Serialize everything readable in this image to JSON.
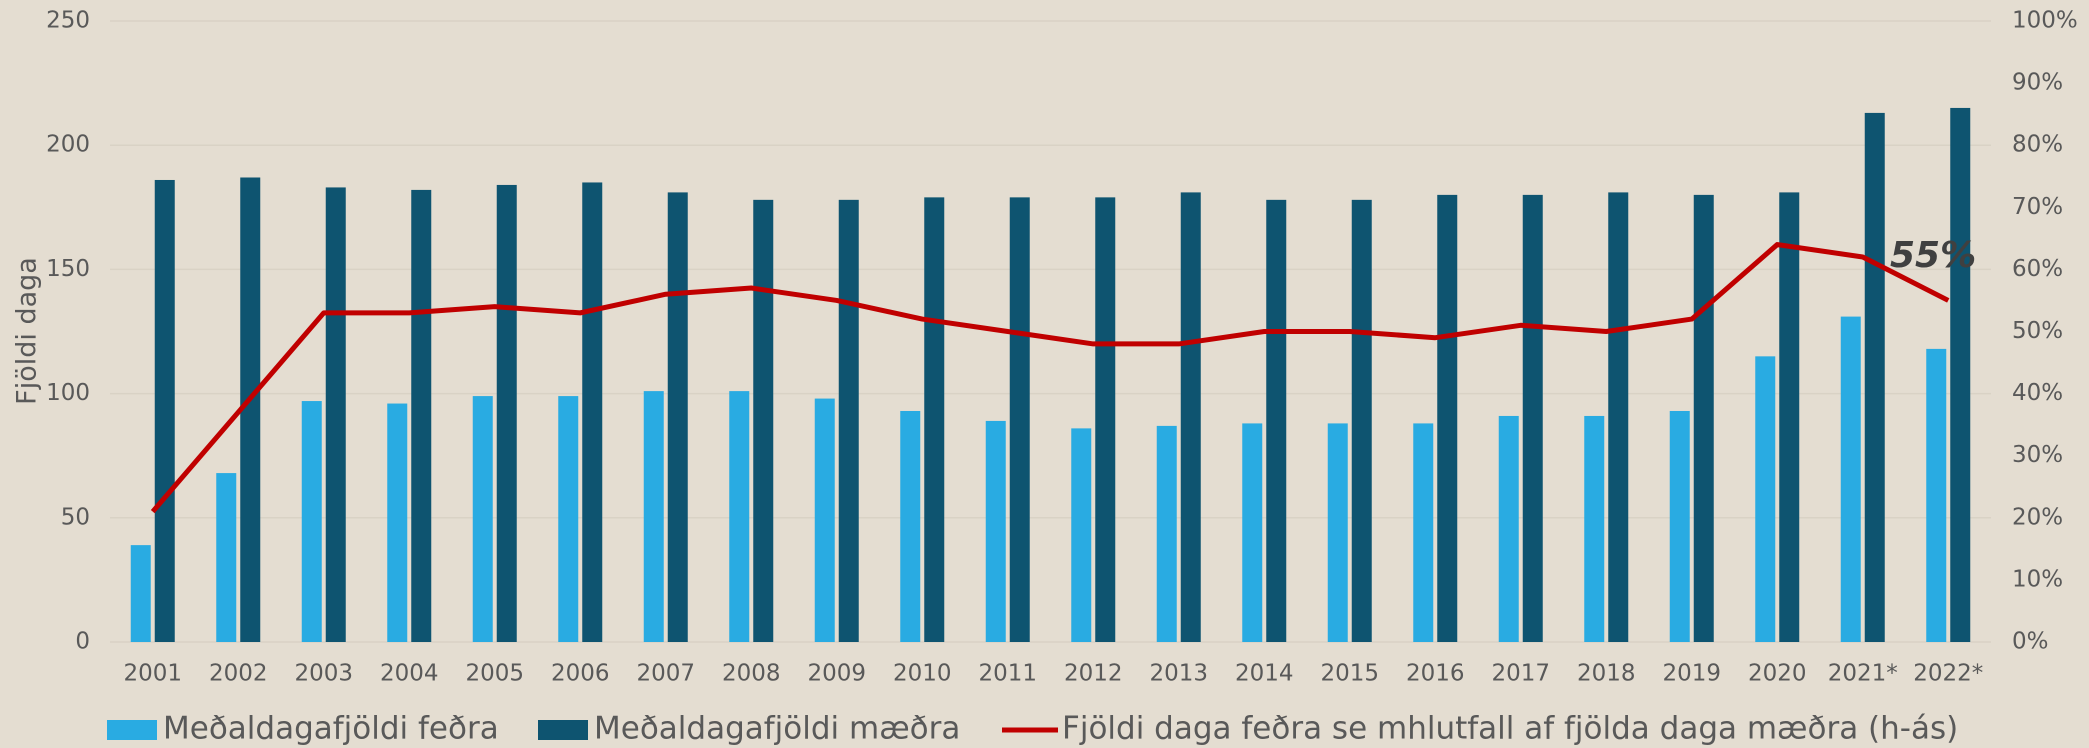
{
  "chart_data": {
    "type": "bar",
    "y_label": "Fjöldi daga",
    "categories": [
      "2001",
      "2002",
      "2003",
      "2004",
      "2005",
      "2006",
      "2007",
      "2008",
      "2009",
      "2010",
      "2011",
      "2012",
      "2013",
      "2014",
      "2015",
      "2016",
      "2017",
      "2018",
      "2019",
      "2020",
      "2021*",
      "2022*"
    ],
    "series": [
      {
        "name": "Meðaldagafjöldi feðra",
        "type": "bar",
        "color": "#29abe2",
        "values": [
          39,
          68,
          97,
          96,
          99,
          99,
          101,
          101,
          98,
          93,
          89,
          86,
          87,
          88,
          88,
          88,
          91,
          91,
          93,
          115,
          131,
          118
        ]
      },
      {
        "name": "Meðaldagafjöldi mæðra",
        "type": "bar",
        "color": "#0e5470",
        "values": [
          186,
          187,
          183,
          182,
          184,
          185,
          181,
          178,
          178,
          179,
          179,
          179,
          181,
          178,
          178,
          180,
          180,
          181,
          180,
          181,
          213,
          215
        ]
      },
      {
        "name": "Fjöldi daga feðra se mhlutfall af fjölda daga mæðra (h-ás)",
        "type": "line",
        "color": "#c00000",
        "axis": "y2",
        "values": [
          21,
          37,
          53,
          53,
          54,
          53,
          56,
          57,
          55,
          52,
          50,
          48,
          48,
          50,
          50,
          49,
          51,
          50,
          52,
          64,
          62,
          55
        ]
      }
    ],
    "annotation": "55%",
    "ylim": [
      0,
      250
    ],
    "yticks": [
      0,
      50,
      100,
      150,
      200,
      250
    ],
    "y2lim": [
      0,
      100
    ],
    "y2ticks": [
      {
        "value": 0,
        "label": "0%"
      },
      {
        "value": 10,
        "label": "10%"
      },
      {
        "value": 20,
        "label": "20%"
      },
      {
        "value": 30,
        "label": "30%"
      },
      {
        "value": 40,
        "label": "40%"
      },
      {
        "value": 50,
        "label": "50%"
      },
      {
        "value": 60,
        "label": "60%"
      },
      {
        "value": 70,
        "label": "70%"
      },
      {
        "value": 80,
        "label": "80%"
      },
      {
        "value": 90,
        "label": "90%"
      },
      {
        "value": 100,
        "label": "100%"
      }
    ],
    "grid": true,
    "legend": "bottom"
  }
}
